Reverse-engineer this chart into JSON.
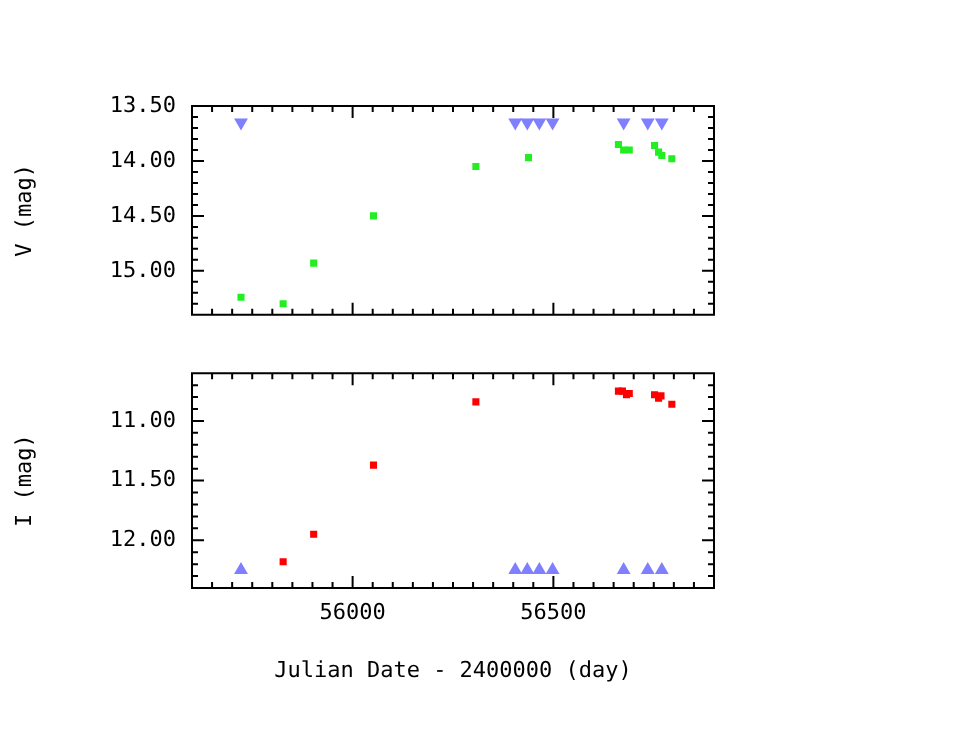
{
  "chart_data": [
    {
      "type": "scatter",
      "ylabel": "V (mag)",
      "marker": "square",
      "tick_labels": "y",
      "xlim": [
        55600,
        56900
      ],
      "ylim": [
        15.4,
        13.5
      ],
      "yticks": [
        {
          "value": 13.5,
          "label": "13.50"
        },
        {
          "value": 13.6,
          "label": null
        },
        {
          "value": 13.7,
          "label": null
        },
        {
          "value": 13.8,
          "label": null
        },
        {
          "value": 13.9,
          "label": null
        },
        {
          "value": 14.0,
          "label": "14.00"
        },
        {
          "value": 14.1,
          "label": null
        },
        {
          "value": 14.2,
          "label": null
        },
        {
          "value": 14.3,
          "label": null
        },
        {
          "value": 14.4,
          "label": null
        },
        {
          "value": 14.5,
          "label": "14.50"
        },
        {
          "value": 14.6,
          "label": null
        },
        {
          "value": 14.7,
          "label": null
        },
        {
          "value": 14.8,
          "label": null
        },
        {
          "value": 14.9,
          "label": null
        },
        {
          "value": 15.0,
          "label": "15.00"
        },
        {
          "value": 15.1,
          "label": null
        },
        {
          "value": 15.2,
          "label": null
        },
        {
          "value": 15.3,
          "label": null
        }
      ],
      "series": [
        {
          "color": "#22ee22",
          "x": [
            55722,
            55827,
            55903,
            56052,
            56307,
            56438,
            56662,
            56675,
            56689,
            56752,
            56762,
            56770,
            56795
          ],
          "values": [
            15.24,
            15.3,
            14.93,
            14.5,
            14.05,
            13.97,
            13.85,
            13.9,
            13.9,
            13.86,
            13.92,
            13.95,
            13.98
          ]
        },
        {
          "color": "#7f7fff",
          "marker": "triangle",
          "x": [
            55722,
            56405,
            56435,
            56465,
            56498,
            56675,
            56735,
            56770
          ],
          "values": [
            13.65,
            13.65,
            13.65,
            13.65,
            13.65,
            13.65,
            13.65,
            13.65
          ]
        }
      ]
    },
    {
      "type": "scatter",
      "xlabel": "Julian Date - 2400000 (day)",
      "ylabel": "I (mag)",
      "marker": "square",
      "xlim": [
        55600,
        56900
      ],
      "xticks": [
        {
          "value": 55650,
          "label": null
        },
        {
          "value": 55700,
          "label": null
        },
        {
          "value": 55750,
          "label": null
        },
        {
          "value": 55800,
          "label": null
        },
        {
          "value": 55850,
          "label": null
        },
        {
          "value": 55900,
          "label": null
        },
        {
          "value": 55950,
          "label": null
        },
        {
          "value": 56000,
          "label": "56000"
        },
        {
          "value": 56050,
          "label": null
        },
        {
          "value": 56100,
          "label": null
        },
        {
          "value": 56150,
          "label": null
        },
        {
          "value": 56200,
          "label": null
        },
        {
          "value": 56250,
          "label": null
        },
        {
          "value": 56300,
          "label": null
        },
        {
          "value": 56350,
          "label": null
        },
        {
          "value": 56400,
          "label": null
        },
        {
          "value": 56450,
          "label": null
        },
        {
          "value": 56500,
          "label": "56500"
        },
        {
          "value": 56550,
          "label": null
        },
        {
          "value": 56600,
          "label": null
        },
        {
          "value": 56650,
          "label": null
        },
        {
          "value": 56700,
          "label": null
        },
        {
          "value": 56750,
          "label": null
        },
        {
          "value": 56800,
          "label": null
        },
        {
          "value": 56850,
          "label": null
        }
      ],
      "ylim": [
        12.4,
        10.6
      ],
      "yticks": [
        {
          "value": 10.7,
          "label": null
        },
        {
          "value": 10.8,
          "label": null
        },
        {
          "value": 10.9,
          "label": null
        },
        {
          "value": 11.0,
          "label": "11.00"
        },
        {
          "value": 11.1,
          "label": null
        },
        {
          "value": 11.2,
          "label": null
        },
        {
          "value": 11.3,
          "label": null
        },
        {
          "value": 11.4,
          "label": null
        },
        {
          "value": 11.5,
          "label": "11.50"
        },
        {
          "value": 11.6,
          "label": null
        },
        {
          "value": 11.7,
          "label": null
        },
        {
          "value": 11.8,
          "label": null
        },
        {
          "value": 11.9,
          "label": null
        },
        {
          "value": 12.0,
          "label": "12.00"
        },
        {
          "value": 12.1,
          "label": null
        },
        {
          "value": 12.2,
          "label": null
        },
        {
          "value": 12.3,
          "label": null
        }
      ],
      "series": [
        {
          "color": "#ff0000",
          "x": [
            55827,
            55903,
            56052,
            56307,
            56662,
            56672,
            56682,
            56689,
            56752,
            56762,
            56768,
            56795
          ],
          "values": [
            12.18,
            11.95,
            11.37,
            10.84,
            10.75,
            10.75,
            10.78,
            10.77,
            10.78,
            10.81,
            10.79,
            10.86
          ]
        },
        {
          "color": "#7f7fff",
          "marker": "triangle",
          "x": [
            55722,
            56405,
            56435,
            56465,
            56498,
            56675,
            56735,
            56770
          ],
          "values": [
            12.25,
            12.25,
            12.25,
            12.25,
            12.25,
            12.25,
            12.25,
            12.25
          ]
        }
      ]
    }
  ]
}
